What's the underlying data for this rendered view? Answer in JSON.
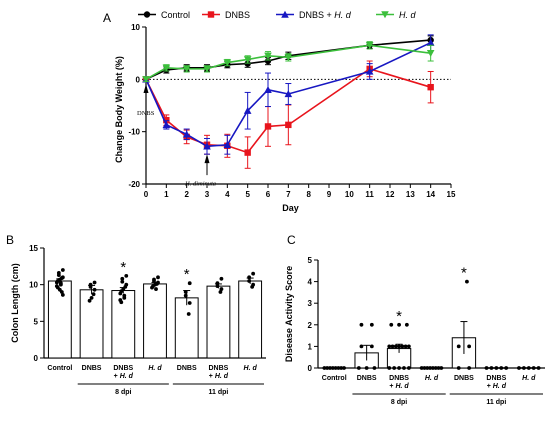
{
  "chart_data": [
    {
      "panel": "A",
      "type": "line",
      "xlabel": "Day",
      "ylabel": "Change Body Weight (%)",
      "xlim": [
        0,
        15
      ],
      "ylim": [
        -20,
        10
      ],
      "xticks": [
        0,
        1,
        2,
        3,
        4,
        5,
        6,
        7,
        8,
        9,
        10,
        11,
        12,
        13,
        14,
        15
      ],
      "yticks": [
        -20,
        -10,
        0,
        10
      ],
      "legend_position": "top",
      "annotations": [
        {
          "text": "DNBS",
          "x": 0
        },
        {
          "text": "H. diminuta",
          "x": 3
        }
      ],
      "series": [
        {
          "name": "Control",
          "color": "#000000",
          "marker": "circle",
          "x": [
            0,
            1,
            2,
            3,
            4,
            5,
            6,
            7,
            11,
            14
          ],
          "y": [
            0,
            1.8,
            2.2,
            2.2,
            2.8,
            3.0,
            3.5,
            4.5,
            6.5,
            7.5
          ],
          "err": [
            0.4,
            0.6,
            0.6,
            0.6,
            0.6,
            0.7,
            0.7,
            0.7,
            0.6,
            0.8
          ]
        },
        {
          "name": "DNBS",
          "color": "#e8141c",
          "marker": "square",
          "x": [
            0,
            1,
            2,
            3,
            4,
            5,
            6,
            7,
            11,
            14
          ],
          "y": [
            0,
            -7.8,
            -11.0,
            -12.5,
            -12.7,
            -14.0,
            -9.0,
            -8.7,
            2.0,
            -1.5
          ],
          "err": [
            0.4,
            1.0,
            1.3,
            1.8,
            2.2,
            3.0,
            3.8,
            3.8,
            1.5,
            3.0
          ]
        },
        {
          "name": "DNBS + H. d",
          "color": "#1717c2",
          "marker": "triangle",
          "x": [
            0,
            1,
            2,
            3,
            4,
            5,
            6,
            7,
            11,
            14
          ],
          "y": [
            0,
            -8.7,
            -10.5,
            -12.8,
            -12.5,
            -6.0,
            -2.0,
            -2.8,
            1.5,
            7.0
          ],
          "err": [
            0.4,
            0.8,
            1.0,
            1.5,
            1.8,
            3.5,
            3.2,
            2.0,
            1.5,
            1.5
          ]
        },
        {
          "name": "H. d",
          "color": "#3cbf3c",
          "marker": "triangle-down",
          "x": [
            0,
            1,
            2,
            3,
            4,
            5,
            6,
            7,
            11,
            14
          ],
          "y": [
            0,
            2.2,
            2.0,
            2.0,
            3.2,
            3.8,
            4.5,
            4.2,
            6.5,
            5.0
          ],
          "err": [
            0.4,
            0.6,
            0.6,
            0.6,
            0.6,
            0.7,
            0.8,
            0.7,
            0.7,
            1.5
          ]
        }
      ]
    },
    {
      "panel": "B",
      "type": "bar",
      "ylabel": "Colon Length (cm)",
      "ylim": [
        0,
        15
      ],
      "yticks": [
        0,
        5,
        10,
        15
      ],
      "categories": [
        "Control",
        "DNBS",
        "DNBS + H. d",
        "H. d",
        "DNBS",
        "DNBS + H. d",
        "H. d"
      ],
      "groups": [
        {
          "label": "8 dpi",
          "from": 1,
          "to": 3
        },
        {
          "label": "11 dpi",
          "from": 4,
          "to": 6
        }
      ],
      "values": [
        10.5,
        9.3,
        9.2,
        10.1,
        8.2,
        9.8,
        10.5
      ],
      "errors": [
        0.3,
        0.6,
        0.4,
        0.2,
        1.0,
        0.3,
        0.4
      ],
      "significant": [
        false,
        false,
        true,
        false,
        true,
        false,
        false
      ],
      "points": [
        [
          12.0,
          11.6,
          11.3,
          11.0,
          10.9,
          10.7,
          10.5,
          10.3,
          10.2,
          10.0,
          9.8,
          9.6,
          9.3,
          9.0,
          8.6
        ],
        [
          10.3,
          10.0,
          9.7,
          9.3,
          8.7,
          8.2,
          7.8
        ],
        [
          11.2,
          10.8,
          10.4,
          10.0,
          9.7,
          9.4,
          9.1,
          8.8,
          8.5,
          8.2,
          7.9,
          7.6
        ],
        [
          11.0,
          10.7,
          10.5,
          10.3,
          10.1,
          10.0,
          9.8,
          9.6,
          9.4
        ],
        [
          10.2,
          9.0,
          8.5,
          7.5,
          6.0
        ],
        [
          10.8,
          10.2,
          9.8,
          9.4,
          9.0
        ],
        [
          11.5,
          11.0,
          10.5,
          10.0,
          9.7
        ]
      ],
      "sig_marker": "*"
    },
    {
      "panel": "C",
      "type": "bar",
      "ylabel": "Disease Activity Score",
      "ylim": [
        0,
        5
      ],
      "yticks": [
        0,
        1,
        2,
        3,
        4,
        5
      ],
      "categories": [
        "Control",
        "DNBS",
        "DNBS + H. d",
        "H. d",
        "DNBS",
        "DNBS + H. d",
        "H. d"
      ],
      "groups": [
        {
          "label": "8 dpi",
          "from": 1,
          "to": 3
        },
        {
          "label": "11 dpi",
          "from": 4,
          "to": 6
        }
      ],
      "values": [
        0,
        0.7,
        0.9,
        0,
        1.4,
        0,
        0
      ],
      "errors": [
        0,
        0.35,
        0.2,
        0,
        0.75,
        0,
        0
      ],
      "significant": [
        false,
        false,
        true,
        false,
        true,
        false,
        false
      ],
      "points": [
        [
          0,
          0,
          0,
          0,
          0,
          0,
          0,
          0
        ],
        [
          2,
          2,
          1,
          1,
          0,
          0,
          0
        ],
        [
          2,
          2,
          2,
          1,
          1,
          1,
          1,
          1,
          1,
          1,
          0,
          0,
          0,
          0,
          0
        ],
        [
          0,
          0,
          0,
          0,
          0,
          0,
          0,
          0
        ],
        [
          4,
          1,
          1,
          0,
          0
        ],
        [
          0,
          0,
          0,
          0,
          0
        ],
        [
          0,
          0,
          0,
          0,
          0
        ]
      ],
      "sig_marker": "*"
    }
  ]
}
